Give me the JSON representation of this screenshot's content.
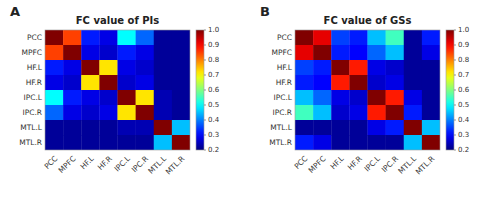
{
  "chart_data": [
    {
      "type": "heatmap",
      "title": "FC value of PIs",
      "annotations": [
        "A"
      ],
      "x_categories": [
        "PCC",
        "MPFC",
        "HF.L",
        "HF.R",
        "IPC.L",
        "IPC.R",
        "MTL.L",
        "MTL.R"
      ],
      "y_categories": [
        "PCC",
        "MPFC",
        "HF.L",
        "HF.R",
        "IPC.L",
        "IPC.R",
        "MTL.L",
        "MTL.R"
      ],
      "values": [
        [
          1.0,
          0.85,
          0.32,
          0.28,
          0.5,
          0.38,
          0.22,
          0.22
        ],
        [
          0.85,
          1.0,
          0.28,
          0.26,
          0.32,
          0.28,
          0.22,
          0.22
        ],
        [
          0.32,
          0.28,
          1.0,
          0.72,
          0.28,
          0.26,
          0.22,
          0.22
        ],
        [
          0.28,
          0.26,
          0.72,
          1.0,
          0.26,
          0.28,
          0.22,
          0.22
        ],
        [
          0.5,
          0.32,
          0.28,
          0.26,
          1.0,
          0.72,
          0.24,
          0.22
        ],
        [
          0.38,
          0.28,
          0.26,
          0.28,
          0.72,
          1.0,
          0.24,
          0.22
        ],
        [
          0.22,
          0.22,
          0.22,
          0.22,
          0.24,
          0.24,
          1.0,
          0.45
        ],
        [
          0.22,
          0.22,
          0.22,
          0.22,
          0.22,
          0.22,
          0.45,
          1.0
        ]
      ],
      "color_range": [
        0.2,
        1.0
      ],
      "color_ticks": [
        {
          "value": 1.0,
          "label": "1.0"
        },
        0.9,
        0.8,
        0.7,
        0.6,
        0.5,
        0.4,
        0.3,
        0.2
      ]
    },
    {
      "type": "heatmap",
      "title": "FC value of GSs",
      "annotations": [
        "B"
      ],
      "x_categories": [
        "PCC",
        "MPFC",
        "HF.L",
        "HF.R",
        "IPC.L",
        "IPC.R",
        "MTL.L",
        "MTL.R"
      ],
      "y_categories": [
        "PCC",
        "MPFC",
        "HF.L",
        "HF.R",
        "IPC.L",
        "IPC.R",
        "MTL.L",
        "MTL.R"
      ],
      "values": [
        [
          1.0,
          0.92,
          0.35,
          0.32,
          0.45,
          0.55,
          0.22,
          0.32
        ],
        [
          0.92,
          1.0,
          0.32,
          0.3,
          0.38,
          0.45,
          0.22,
          0.28
        ],
        [
          0.35,
          0.32,
          1.0,
          0.88,
          0.28,
          0.26,
          0.22,
          0.22
        ],
        [
          0.32,
          0.3,
          0.88,
          1.0,
          0.26,
          0.28,
          0.22,
          0.22
        ],
        [
          0.45,
          0.38,
          0.28,
          0.26,
          1.0,
          0.88,
          0.28,
          0.22
        ],
        [
          0.55,
          0.45,
          0.26,
          0.28,
          0.88,
          1.0,
          0.32,
          0.22
        ],
        [
          0.22,
          0.22,
          0.22,
          0.22,
          0.28,
          0.32,
          1.0,
          0.45
        ],
        [
          0.32,
          0.28,
          0.22,
          0.22,
          0.22,
          0.22,
          0.45,
          1.0
        ]
      ],
      "color_range": [
        0.2,
        1.0
      ],
      "color_ticks": [
        {
          "value": 1.0,
          "label": "1.0"
        },
        0.9,
        0.8,
        0.7,
        0.6,
        0.5,
        0.4,
        0.3,
        0.2
      ]
    }
  ]
}
